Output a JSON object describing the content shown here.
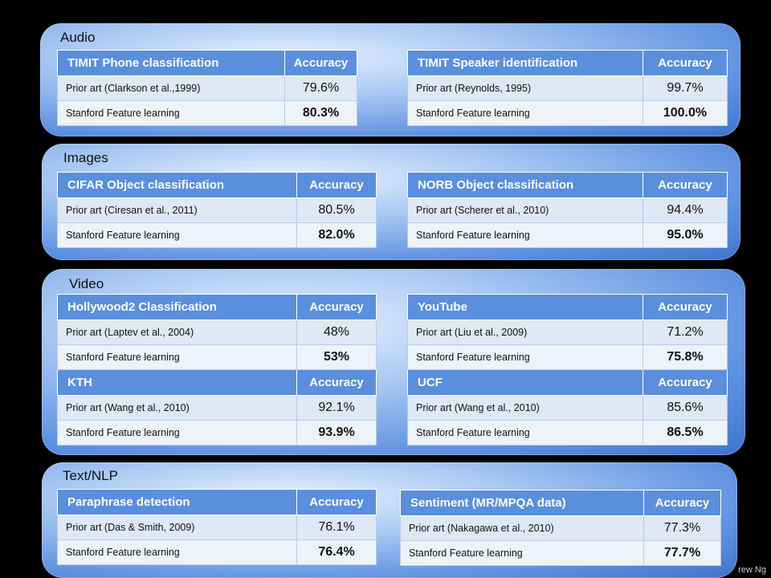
{
  "sections": {
    "audio": {
      "title": "Audio",
      "t1": {
        "header": "TIMIT Phone classification",
        "acc": "Accuracy",
        "r1": {
          "label": "Prior art (Clarkson et al.,1999)",
          "value": "79.6%"
        },
        "r2": {
          "label": "Stanford Feature learning",
          "value": "80.3%"
        }
      },
      "t2": {
        "header": "TIMIT Speaker identification",
        "acc": "Accuracy",
        "r1": {
          "label": "Prior art (Reynolds, 1995)",
          "value": "99.7%"
        },
        "r2": {
          "label": "Stanford Feature learning",
          "value": "100.0%"
        }
      }
    },
    "images": {
      "title": "Images",
      "t1": {
        "header": "CIFAR Object classification",
        "acc": "Accuracy",
        "r1": {
          "label": "Prior art (Ciresan et al., 2011)",
          "value": "80.5%"
        },
        "r2": {
          "label": "Stanford Feature learning",
          "value": "82.0%"
        }
      },
      "t2": {
        "header": "NORB Object classification",
        "acc": "Accuracy",
        "r1": {
          "label": "Prior art (Scherer et al., 2010)",
          "value": "94.4%"
        },
        "r2": {
          "label": "Stanford Feature learning",
          "value": "95.0%"
        }
      }
    },
    "video": {
      "title": "Video",
      "t1": {
        "header": "Hollywood2 Classification",
        "acc": "Accuracy",
        "r1": {
          "label": "Prior art (Laptev et al., 2004)",
          "value": "48%"
        },
        "r2": {
          "label": "Stanford Feature learning",
          "value": "53%"
        }
      },
      "t2": {
        "header": "YouTube",
        "acc": "Accuracy",
        "r1": {
          "label": "Prior art (Liu et al., 2009)",
          "value": "71.2%"
        },
        "r2": {
          "label": "Stanford Feature learning",
          "value": "75.8%"
        }
      },
      "t3": {
        "header": "KTH",
        "acc": "Accuracy",
        "r1": {
          "label": "Prior art (Wang et al., 2010)",
          "value": "92.1%"
        },
        "r2": {
          "label": "Stanford Feature learning",
          "value": "93.9%"
        }
      },
      "t4": {
        "header": "UCF",
        "acc": "Accuracy",
        "r1": {
          "label": "Prior art (Wang et al., 2010)",
          "value": "85.6%"
        },
        "r2": {
          "label": "Stanford Feature learning",
          "value": "86.5%"
        }
      }
    },
    "textnlp": {
      "title": "Text/NLP",
      "t1": {
        "header": "Paraphrase detection",
        "acc": "Accuracy",
        "r1": {
          "label": "Prior art (Das & Smith, 2009)",
          "value": "76.1%"
        },
        "r2": {
          "label": "Stanford Feature learning",
          "value": "76.4%"
        }
      },
      "t2": {
        "header": "Sentiment (MR/MPQA data)",
        "acc": "Accuracy",
        "r1": {
          "label": "Prior art (Nakagawa et al., 2010)",
          "value": "77.3%"
        },
        "r2": {
          "label": "Stanford Feature learning",
          "value": "77.7%"
        }
      }
    }
  },
  "footer": "rew Ng"
}
